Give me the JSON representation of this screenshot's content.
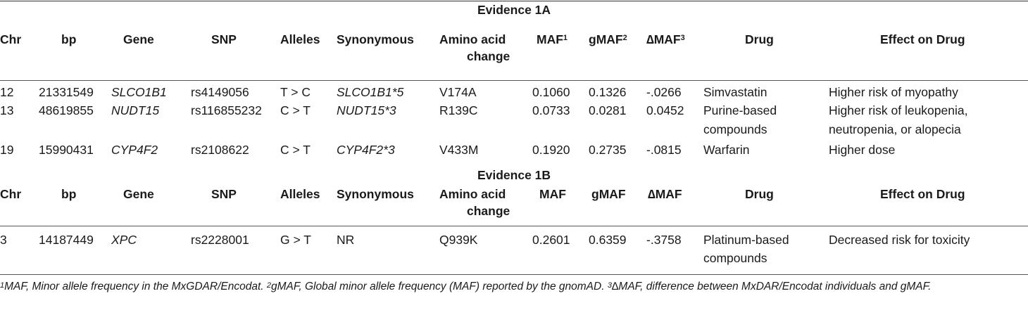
{
  "section_1a": {
    "title": "Evidence 1A",
    "headers": {
      "chr": "Chr",
      "bp": "bp",
      "gene": "Gene",
      "snp": "SNP",
      "alleles": "Alleles",
      "synonymous": "Synonymous",
      "aa_line1": "Amino acid",
      "aa_line2": "change",
      "maf": "MAF",
      "maf_sup": "1",
      "gmaf": "gMAF",
      "gmaf_sup": "2",
      "dmaf": "∆MAF",
      "dmaf_sup": "3",
      "drug": "Drug",
      "effect": "Effect on Drug"
    },
    "rows": [
      {
        "chr": "12",
        "bp": "21331549",
        "gene": "SLCO1B1",
        "snp": "rs4149056",
        "alleles": "T > C",
        "syn": "SLCO1B1*5",
        "aa": "V174A",
        "maf": "0.1060",
        "gmaf": "0.1326",
        "dmaf": "-.0266",
        "drug1": "Simvastatin",
        "drug2": "",
        "eff1": "Higher risk of myopathy",
        "eff2": ""
      },
      {
        "chr": "13",
        "bp": "48619855",
        "gene": "NUDT15",
        "snp": "rs116855232",
        "alleles": "C > T",
        "syn": "NUDT15*3",
        "aa": "R139C",
        "maf": "0.0733",
        "gmaf": "0.0281",
        "dmaf": "0.0452",
        "drug1": "Purine-based",
        "drug2": "compounds",
        "eff1": "Higher risk of leukopenia,",
        "eff2": "neutropenia, or alopecia"
      },
      {
        "chr": "19",
        "bp": "15990431",
        "gene": "CYP4F2",
        "snp": "rs2108622",
        "alleles": "C > T",
        "syn": "CYP4F2*3",
        "aa": "V433M",
        "maf": "0.1920",
        "gmaf": "0.2735",
        "dmaf": "-.0815",
        "drug1": "Warfarin",
        "drug2": "",
        "eff1": "Higher dose",
        "eff2": ""
      }
    ]
  },
  "section_1b": {
    "title": "Evidence 1B",
    "headers": {
      "chr": "Chr",
      "bp": "bp",
      "gene": "Gene",
      "snp": "SNP",
      "alleles": "Alleles",
      "synonymous": "Synonymous",
      "aa_line1": "Amino acid",
      "aa_line2": "change",
      "maf": "MAF",
      "gmaf": "gMAF",
      "dmaf": "∆MAF",
      "drug": "Drug",
      "effect": "Effect on Drug"
    },
    "rows": [
      {
        "chr": "3",
        "bp": "14187449",
        "gene": "XPC",
        "snp": "rs2228001",
        "alleles": "G > T",
        "syn": "NR",
        "aa": "Q939K",
        "maf": "0.2601",
        "gmaf": "0.6359",
        "dmaf": "-.3758",
        "drug1": "Platinum-based",
        "drug2": "compounds",
        "eff1": "Decreased risk for toxicity",
        "eff2": ""
      }
    ]
  },
  "footnotes": {
    "sup1": "1",
    "text1": "MAF, Minor allele frequency in the MxGDAR/Encodat. ",
    "sup2": "2",
    "text2": "gMAF, Global minor allele frequency (MAF) reported by the gnomAD. ",
    "sup3": "3",
    "text3": "∆MAF, difference between MxDAR/Encodat individuals and gMAF."
  }
}
